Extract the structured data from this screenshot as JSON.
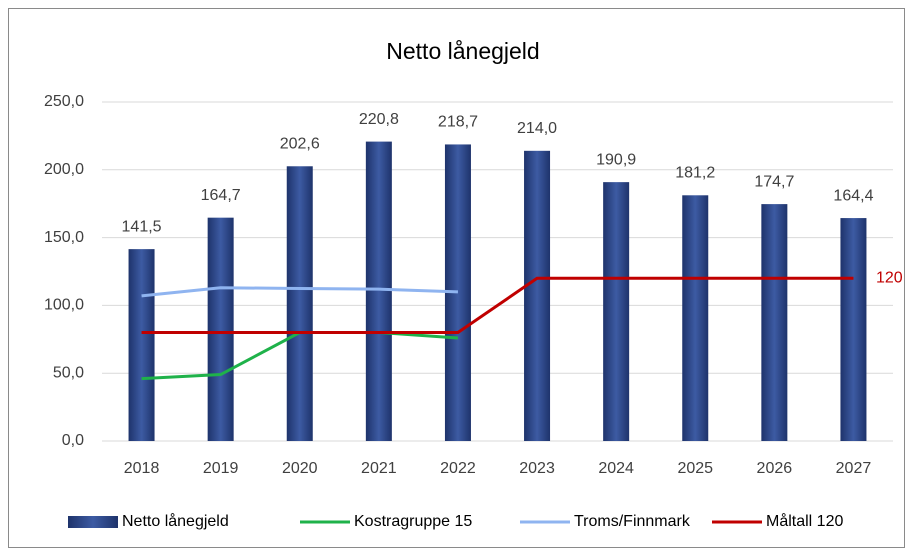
{
  "chart_data": {
    "type": "bar",
    "title": "Netto lånegjeld",
    "categories": [
      "2018",
      "2019",
      "2020",
      "2021",
      "2022",
      "2023",
      "2024",
      "2025",
      "2026",
      "2027"
    ],
    "series": [
      {
        "name": "Netto lånegjeld",
        "type": "bar",
        "color": "#2f4a8a",
        "values": [
          141.5,
          164.7,
          202.6,
          220.8,
          218.7,
          214.0,
          190.9,
          181.2,
          174.7,
          164.4
        ],
        "value_labels": [
          "141,5",
          "164,7",
          "202,6",
          "220,8",
          "218,7",
          "214,0",
          "190,9",
          "181,2",
          "174,7",
          "164,4"
        ]
      },
      {
        "name": "Kostragruppe 15",
        "type": "line",
        "color": "#1fb24a",
        "values": [
          46,
          49,
          80,
          80,
          76,
          null,
          null,
          null,
          null,
          null
        ]
      },
      {
        "name": "Troms/Finnmark",
        "type": "line",
        "color": "#8fb4f0",
        "values": [
          107,
          113,
          112.5,
          112,
          110,
          null,
          null,
          null,
          null,
          null
        ]
      },
      {
        "name": "Måltall 120",
        "type": "line",
        "color": "#c00000",
        "values": [
          80,
          80,
          80,
          80,
          80,
          120,
          120,
          120,
          120,
          120
        ]
      }
    ],
    "annotations": [
      "120"
    ],
    "ylim": [
      0,
      250
    ],
    "yticks": [
      {
        "value": 0,
        "label": "0,0"
      },
      {
        "value": 50,
        "label": "50,0"
      },
      {
        "value": 100,
        "label": "100,0"
      },
      {
        "value": 150,
        "label": "150,0"
      },
      {
        "value": 200,
        "label": "200,0"
      },
      {
        "value": 250,
        "label": "250,0"
      }
    ],
    "grid": true,
    "legend": "bottom"
  }
}
